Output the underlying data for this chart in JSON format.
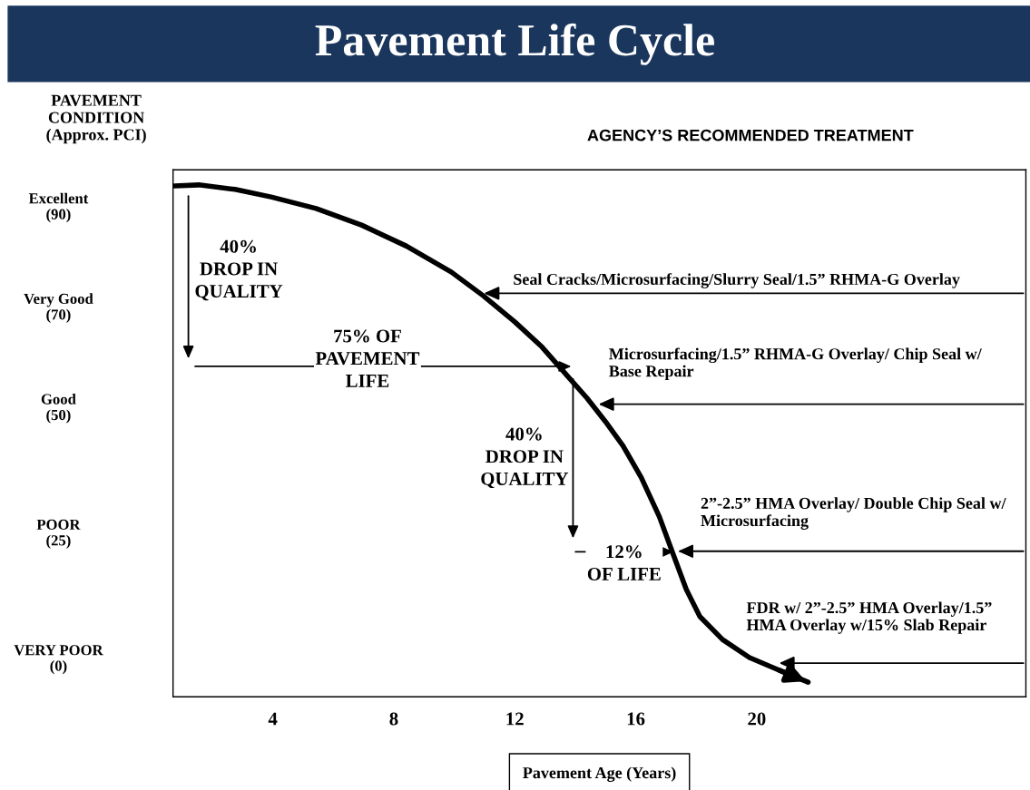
{
  "chart_data": {
    "type": "line",
    "title": "Pavement Life Cycle",
    "xlabel": "Pavement Age (Years)",
    "ylabel": "PAVEMENT\nCONDITION\n(Approx. PCI)",
    "series": [
      {
        "color": "#000000",
        "x": [
          0.75,
          1.55,
          2.75,
          3.94,
          5.43,
          6.93,
          8.42,
          9.91,
          10.96,
          12.0,
          12.9,
          13.79,
          14.39,
          14.99,
          15.58,
          16.18,
          16.78,
          17.22,
          17.67,
          18.12,
          18.87,
          19.76,
          20.66,
          21.7
        ],
        "values": [
          93.8,
          94,
          93.1,
          91.6,
          89.3,
          86.0,
          81.8,
          76.6,
          71.9,
          66.7,
          61.7,
          55.6,
          51.5,
          46.9,
          42.0,
          35.7,
          27.9,
          20.7,
          13.4,
          8.0,
          3.4,
          -0.2,
          -2.5,
          -5.1
        ]
      }
    ],
    "xlim": [
      0.7,
      28.9
    ],
    "xticks": [
      4,
      8,
      12,
      16,
      20
    ],
    "ylim": [
      -8,
      97
    ],
    "yticks": [
      {
        "value": 90,
        "label": "Excellent\n(90)"
      },
      {
        "value": 70,
        "label": "Very Good\n(70)"
      },
      {
        "value": 50,
        "label": "Good\n(50)"
      },
      {
        "value": 25,
        "label": "POOR\n(25)"
      },
      {
        "value": 0,
        "label": "VERY POOR\n(0)"
      }
    ],
    "grid": false,
    "legend": false,
    "marker": "none",
    "line_style": "solid",
    "annotations": [
      {
        "text": "Seal Cracks/Microsurfacing/Slurry Seal/1.5” RHMA-G Overlay",
        "x": 10.9,
        "y": 72.4
      },
      {
        "text": "Microsurfacing/1.5” RHMA-G Overlay/ Chip Seal w/\nBase Repair",
        "x": 14.69,
        "y": 50.3
      },
      {
        "text": "2”-2.5” HMA Overlay/ Double Chip Seal w/\nMicrosurfacing",
        "x": 17.31,
        "y": 21
      },
      {
        "text": "FDR w/ 2”-2.5” HMA Overlay/1.5”\nHMA Overlay w/15% Slab Repair",
        "x": 20.66,
        "y": -1.3
      },
      "40%\nDROP IN\nQUALITY",
      "75% OF\nPAVEMENT\nLIFE",
      "40%\nDROP IN\nQUALITY",
      "12%\nOF LIFE",
      "AGENCY’S RECOMMENDED TREATMENT"
    ]
  }
}
